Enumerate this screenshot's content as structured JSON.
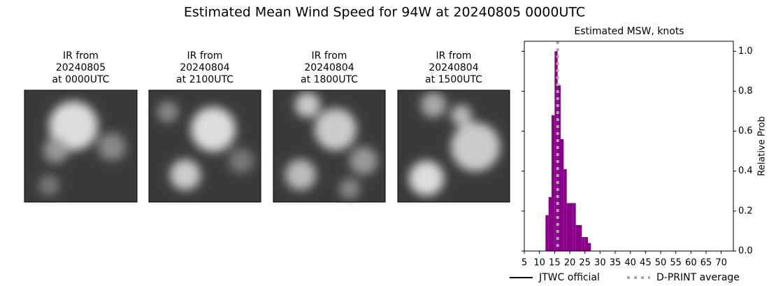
{
  "title": "Estimated Mean Wind Speed for 94W at 20240805 0000UTC",
  "panels": [
    {
      "lines": [
        "IR from",
        "20240805",
        "at 0000UTC"
      ]
    },
    {
      "lines": [
        "IR from",
        "20240804",
        "at 2100UTC"
      ]
    },
    {
      "lines": [
        "IR from",
        "20240804",
        "at 1800UTC"
      ]
    },
    {
      "lines": [
        "IR from",
        "20240804",
        "at 1500UTC"
      ]
    }
  ],
  "chart_data": {
    "type": "histogram",
    "title": "Estimated MSW, knots",
    "ylabel": "Relative Prob",
    "bins": [
      12,
      13,
      14,
      15,
      16,
      17,
      18,
      19,
      20,
      21,
      22,
      23,
      24,
      25,
      26,
      27
    ],
    "values": [
      0.18,
      0.27,
      0.68,
      1.0,
      0.83,
      0.56,
      0.41,
      0.24,
      0.24,
      0.24,
      0.13,
      0.13,
      0.07,
      0.07,
      0.04
    ],
    "color": "#8b008b",
    "xlim": [
      5,
      74
    ],
    "xticks": [
      5,
      10,
      15,
      20,
      25,
      30,
      35,
      40,
      45,
      50,
      55,
      60,
      65,
      70
    ],
    "ylim": [
      0,
      1.05
    ],
    "yticks": [
      {
        "value": 0,
        "label": "0.0"
      },
      {
        "value": 0.2,
        "label": "0.2"
      },
      {
        "value": 0.4,
        "label": "0.4"
      },
      {
        "value": 0.6,
        "label": "0.6"
      },
      {
        "value": 0.8,
        "label": "0.8"
      },
      {
        "value": 1.0,
        "label": "1.0"
      }
    ],
    "lines": [
      {
        "name": "JTWC official",
        "color": "#000000"
      },
      {
        "name": "D-PRINT average",
        "color": "#aaaaaa",
        "x": 16
      }
    ]
  }
}
